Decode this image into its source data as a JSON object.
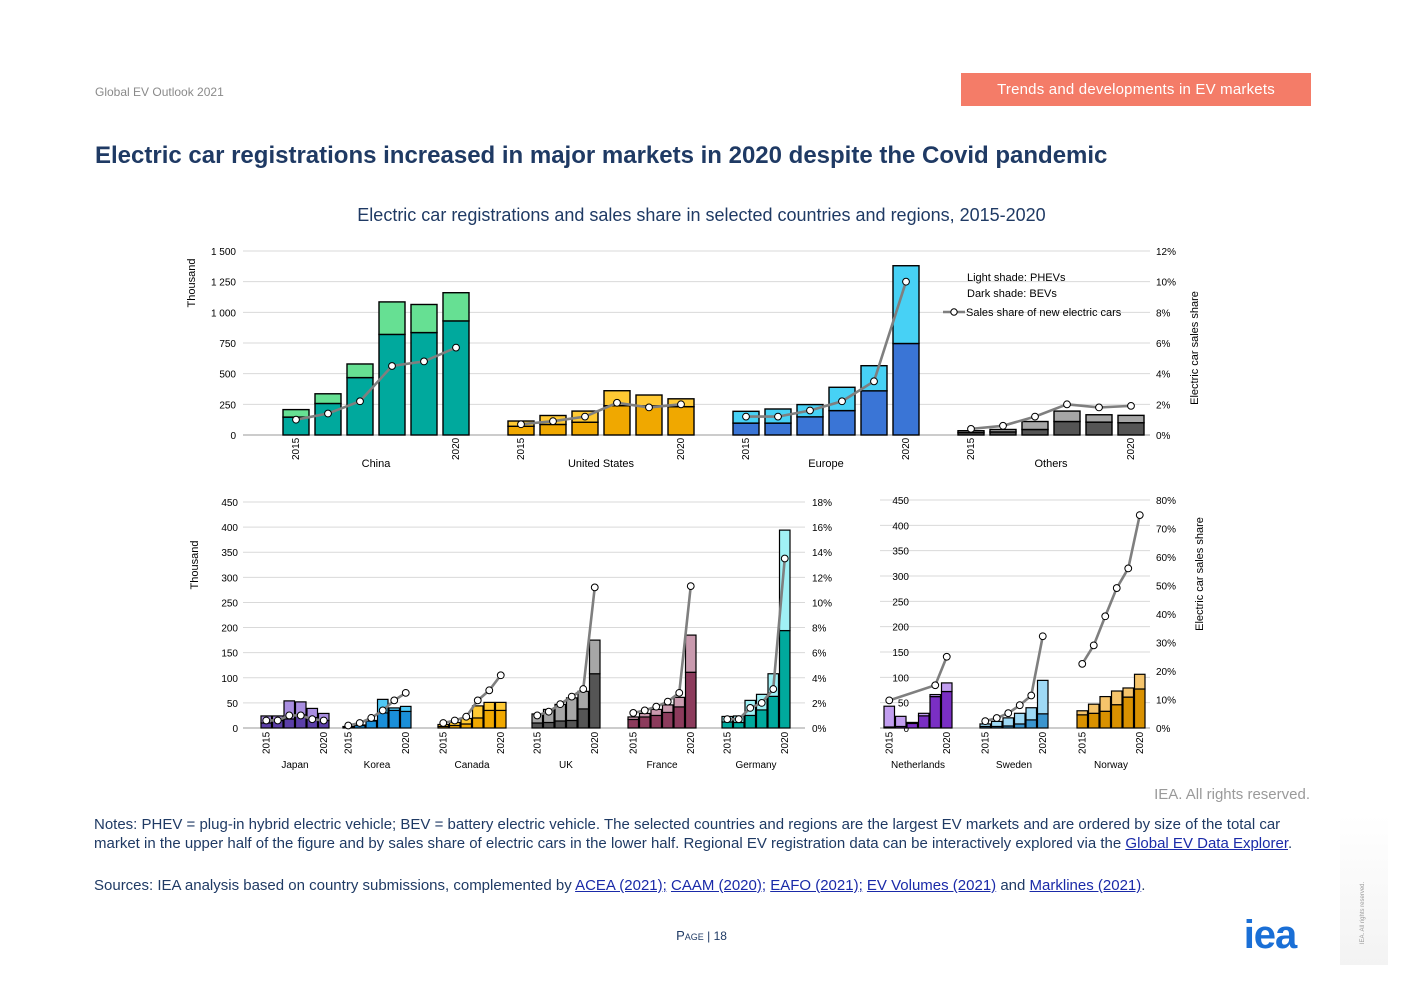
{
  "header": {
    "left": "Global EV Outlook 2021",
    "right": "Trends and developments in EV markets"
  },
  "title": "Electric car registrations increased in major markets in 2020 despite the Covid pandemic",
  "chart_title": "Electric car registrations and sales share in selected countries and regions, 2015-2020",
  "rights": "IEA. All rights reserved.",
  "notes": {
    "text1": "Notes: PHEV = plug-in hybrid electric vehicle; BEV = battery electric vehicle. The selected countries and regions are the largest EV markets and are ordered by size of the total car market in the upper half of the figure and by sales share of electric cars in the lower half. Regional EV registration data can be interactively explored via the ",
    "link": "Global EV Data Explorer",
    "text2": "."
  },
  "sources": {
    "prefix": "Sources: IEA analysis based on country submissions, complemented by ",
    "link1": "ACEA (2021);",
    "link2": "CAAM (2020);",
    "link3": "EAFO (2021);",
    "link4": "EV Volumes (2021)",
    "mid": " and ",
    "link5": "Marklines (2021)",
    "suffix": "."
  },
  "page": {
    "word": "Page",
    "sep": " | ",
    "number": "18"
  },
  "logo_text": "iea",
  "side_text": "IEA. All rights reserved.",
  "chart_data": [
    {
      "type": "bar",
      "name": "top-panel",
      "stacked": true,
      "ylabel": "Thousand",
      "y2label": "Electric car sales share",
      "ylim": [
        0,
        1500
      ],
      "y2lim": [
        0,
        12
      ],
      "yticks": [
        "0",
        "250",
        "500",
        "750",
        "1 000",
        "1 250",
        "1 500"
      ],
      "y2ticks": [
        "0%",
        "2%",
        "4%",
        "6%",
        "8%",
        "10%",
        "12%"
      ],
      "legend": [
        "Light shade: PHEVs",
        "Dark shade: BEVs",
        "Sales share of new electric cars"
      ],
      "start_label": "2015",
      "end_label": "2020",
      "groups": [
        {
          "name": "China",
          "dark": "#00a99d",
          "light": "#66e093",
          "bev": [
            146,
            257,
            468,
            820,
            835,
            930
          ],
          "phev": [
            61,
            79,
            111,
            265,
            229,
            230
          ],
          "share": [
            1.0,
            1.4,
            2.2,
            4.5,
            4.8,
            5.7
          ]
        },
        {
          "name": "United States",
          "dark": "#f0a800",
          "light": "#ffc933",
          "bev": [
            71,
            86,
            104,
            239,
            238,
            231
          ],
          "phev": [
            43,
            73,
            91,
            122,
            88,
            64
          ],
          "share": [
            0.7,
            0.9,
            1.2,
            2.1,
            1.8,
            2.0
          ]
        },
        {
          "name": "Europe",
          "dark": "#3a75d6",
          "light": "#47d1f5",
          "bev": [
            97,
            97,
            148,
            199,
            360,
            746
          ],
          "phev": [
            96,
            115,
            100,
            190,
            205,
            634
          ],
          "share": [
            1.2,
            1.2,
            1.6,
            2.2,
            3.5,
            10.0
          ]
        },
        {
          "name": "Others",
          "dark": "#555555",
          "light": "#a6a6a6",
          "bev": [
            20,
            25,
            45,
            110,
            105,
            100
          ],
          "phev": [
            15,
            20,
            65,
            85,
            60,
            60
          ],
          "share": [
            0.4,
            0.6,
            1.2,
            2.0,
            1.8,
            1.9
          ]
        }
      ]
    },
    {
      "type": "bar",
      "name": "bottom-left-panel",
      "stacked": true,
      "ylabel": "Thousand",
      "ylim": [
        0,
        450
      ],
      "y2lim": [
        0,
        18
      ],
      "yticks": [
        "0",
        "50",
        "100",
        "150",
        "200",
        "250",
        "300",
        "350",
        "400",
        "450"
      ],
      "y2ticks": [
        "0%",
        "2%",
        "4%",
        "6%",
        "8%",
        "10%",
        "12%",
        "14%",
        "16%",
        "18%"
      ],
      "start_label": "2015",
      "end_label": "2020",
      "groups": [
        {
          "name": "Japan",
          "dark": "#5b3fa8",
          "light": "#a98ee0",
          "bev": [
            10,
            15,
            18,
            26,
            21,
            15
          ],
          "phev": [
            14,
            9,
            36,
            26,
            18,
            14
          ],
          "share": [
            0.6,
            0.6,
            1.0,
            1.0,
            0.7,
            0.6
          ]
        },
        {
          "name": "Korea",
          "dark": "#1a8fd9",
          "light": "#4fc8f5",
          "bev": [
            2,
            5,
            14,
            30,
            35,
            33
          ],
          "phev": [
            1,
            1,
            1,
            27,
            5,
            10
          ],
          "share": [
            0.2,
            0.4,
            0.8,
            1.4,
            2.2,
            2.8
          ]
        },
        {
          "name": "Canada",
          "dark": "#f0a800",
          "light": "#ffc933",
          "bev": [
            3,
            5,
            8,
            20,
            35,
            35
          ],
          "phev": [
            4,
            6,
            11,
            24,
            16,
            16
          ],
          "share": [
            0.4,
            0.6,
            0.9,
            2.2,
            3.0,
            4.2
          ]
        },
        {
          "name": "UK",
          "dark": "#555555",
          "light": "#a6a6a6",
          "bev": [
            10,
            11,
            14,
            15,
            38,
            108
          ],
          "phev": [
            18,
            26,
            33,
            45,
            35,
            67
          ],
          "share": [
            1.0,
            1.3,
            1.9,
            2.5,
            3.1,
            11.2
          ]
        },
        {
          "name": "France",
          "dark": "#8c3b5c",
          "light": "#c99aae",
          "bev": [
            17,
            22,
            25,
            31,
            42,
            111
          ],
          "phev": [
            5,
            7,
            12,
            15,
            19,
            74
          ],
          "share": [
            1.2,
            1.4,
            1.7,
            2.1,
            2.8,
            11.3
          ]
        },
        {
          "name": "Germany",
          "dark": "#00a99d",
          "light": "#a0f1f5",
          "bev": [
            12,
            11,
            25,
            36,
            63,
            194
          ],
          "phev": [
            11,
            13,
            30,
            31,
            45,
            200
          ],
          "share": [
            0.7,
            0.7,
            1.6,
            2.0,
            3.1,
            13.5
          ]
        }
      ]
    },
    {
      "type": "bar",
      "name": "bottom-right-panel",
      "stacked": true,
      "y2label": "Electric car sales share",
      "ylim": [
        0,
        450
      ],
      "y2lim": [
        0,
        80
      ],
      "yticks": [
        "0",
        "50",
        "100",
        "150",
        "200",
        "250",
        "300",
        "350",
        "400",
        "450"
      ],
      "y2ticks": [
        "0%",
        "10%",
        "20%",
        "30%",
        "40%",
        "50%",
        "60%",
        "70%",
        "80%"
      ],
      "start_label": "2015",
      "end_label": "2020",
      "groups": [
        {
          "name": "Netherlands",
          "dark": "#7a2fc4",
          "light": "#c29ef0",
          "bev": [
            2,
            3,
            9,
            24,
            62,
            72
          ],
          "phev": [
            41,
            20,
            2,
            5,
            4,
            17
          ],
          "share": [
            9.7,
            null,
            null,
            null,
            15.0,
            25.0
          ]
        },
        {
          "name": "Sweden",
          "dark": "#3a95cf",
          "light": "#9ed9f5",
          "bev": [
            3,
            3,
            4,
            8,
            16,
            28
          ],
          "phev": [
            5,
            10,
            16,
            21,
            24,
            66
          ],
          "share": [
            2.4,
            3.5,
            5.2,
            8.0,
            11.4,
            32.2
          ]
        },
        {
          "name": "Norway",
          "dark": "#d99100",
          "light": "#f5c46b",
          "bev": [
            26,
            29,
            33,
            46,
            61,
            77
          ],
          "phev": [
            8,
            18,
            29,
            27,
            18,
            29
          ],
          "share": [
            22.5,
            29.0,
            39.2,
            49.1,
            56.0,
            74.7
          ]
        }
      ]
    }
  ]
}
